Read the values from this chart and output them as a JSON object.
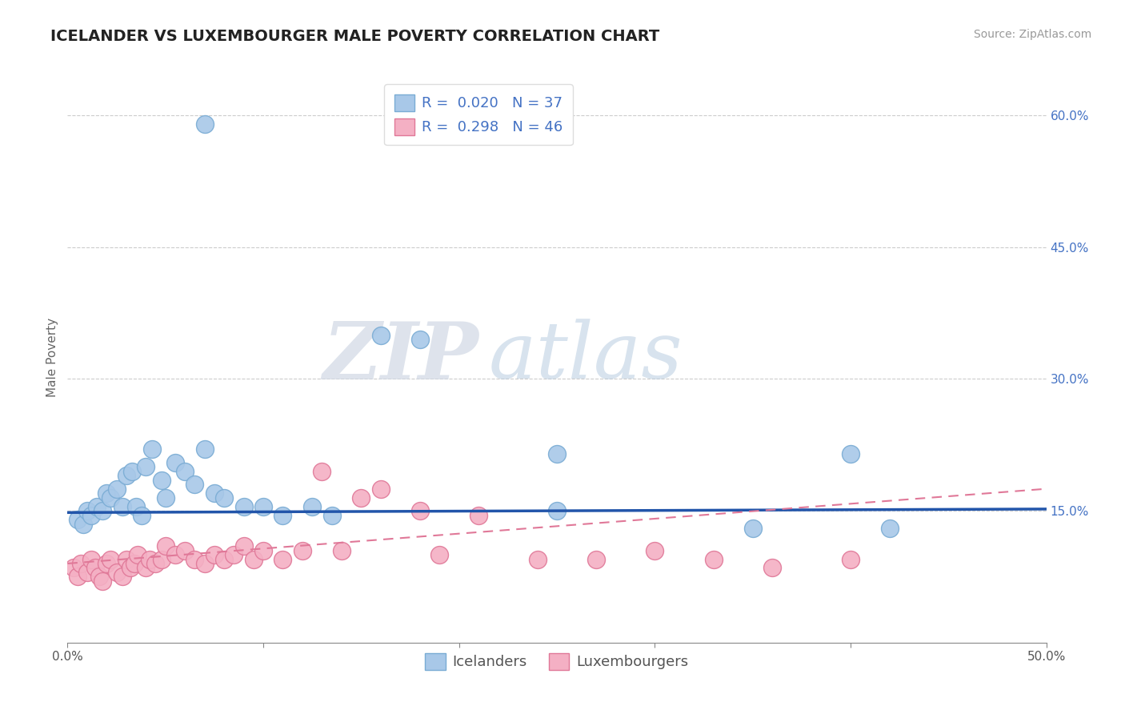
{
  "title": "ICELANDER VS LUXEMBOURGER MALE POVERTY CORRELATION CHART",
  "source": "Source: ZipAtlas.com",
  "ylabel_label": "Male Poverty",
  "xlim": [
    0.0,
    0.5
  ],
  "ylim": [
    0.0,
    0.65
  ],
  "xticks": [
    0.0,
    0.1,
    0.2,
    0.3,
    0.4,
    0.5
  ],
  "yticks": [
    0.15,
    0.3,
    0.45,
    0.6
  ],
  "xtick_labels": [
    "0.0%",
    "",
    "",
    "",
    "",
    "50.0%"
  ],
  "ytick_labels": [
    "15.0%",
    "30.0%",
    "45.0%",
    "60.0%"
  ],
  "grid_color": "#cccccc",
  "background_color": "#ffffff",
  "icelanders_color": "#a8c8e8",
  "icelanders_edge": "#7aacd4",
  "luxembourgers_color": "#f4b0c4",
  "luxembourgers_edge": "#e07898",
  "R_icelanders": 0.02,
  "N_icelanders": 37,
  "R_luxembourgers": 0.298,
  "N_luxembourgers": 46,
  "legend_labels": [
    "Icelanders",
    "Luxembourgers"
  ],
  "icelanders_x": [
    0.005,
    0.008,
    0.01,
    0.012,
    0.015,
    0.018,
    0.02,
    0.022,
    0.025,
    0.028,
    0.03,
    0.033,
    0.035,
    0.038,
    0.04,
    0.043,
    0.048,
    0.05,
    0.055,
    0.06,
    0.065,
    0.07,
    0.075,
    0.08,
    0.09,
    0.1,
    0.11,
    0.125,
    0.135,
    0.07,
    0.16,
    0.18,
    0.25,
    0.35,
    0.4,
    0.42,
    0.25
  ],
  "icelanders_y": [
    0.14,
    0.135,
    0.15,
    0.145,
    0.155,
    0.15,
    0.17,
    0.165,
    0.175,
    0.155,
    0.19,
    0.195,
    0.155,
    0.145,
    0.2,
    0.22,
    0.185,
    0.165,
    0.205,
    0.195,
    0.18,
    0.22,
    0.17,
    0.165,
    0.155,
    0.155,
    0.145,
    0.155,
    0.145,
    0.59,
    0.35,
    0.345,
    0.15,
    0.13,
    0.215,
    0.13,
    0.215
  ],
  "luxembourgers_x": [
    0.003,
    0.005,
    0.007,
    0.01,
    0.012,
    0.014,
    0.016,
    0.018,
    0.02,
    0.022,
    0.025,
    0.028,
    0.03,
    0.032,
    0.034,
    0.036,
    0.04,
    0.042,
    0.045,
    0.048,
    0.05,
    0.055,
    0.06,
    0.065,
    0.07,
    0.075,
    0.08,
    0.085,
    0.09,
    0.095,
    0.1,
    0.11,
    0.12,
    0.13,
    0.14,
    0.15,
    0.16,
    0.18,
    0.19,
    0.21,
    0.24,
    0.27,
    0.3,
    0.33,
    0.36,
    0.4
  ],
  "luxembourgers_y": [
    0.085,
    0.075,
    0.09,
    0.08,
    0.095,
    0.085,
    0.075,
    0.07,
    0.09,
    0.095,
    0.08,
    0.075,
    0.095,
    0.085,
    0.09,
    0.1,
    0.085,
    0.095,
    0.09,
    0.095,
    0.11,
    0.1,
    0.105,
    0.095,
    0.09,
    0.1,
    0.095,
    0.1,
    0.11,
    0.095,
    0.105,
    0.095,
    0.105,
    0.195,
    0.105,
    0.165,
    0.175,
    0.15,
    0.1,
    0.145,
    0.095,
    0.095,
    0.105,
    0.095,
    0.085,
    0.095
  ],
  "watermark_zip": "ZIP",
  "watermark_atlas": "atlas",
  "title_fontsize": 14,
  "axis_label_fontsize": 11,
  "tick_label_fontsize": 11,
  "legend_fontsize": 13,
  "source_fontsize": 10,
  "blue_line_color": "#2255aa",
  "pink_line_color": "#e07898",
  "blue_line_y_start": 0.148,
  "blue_line_y_end": 0.152,
  "pink_line_y_start": 0.09,
  "pink_line_y_end": 0.175
}
